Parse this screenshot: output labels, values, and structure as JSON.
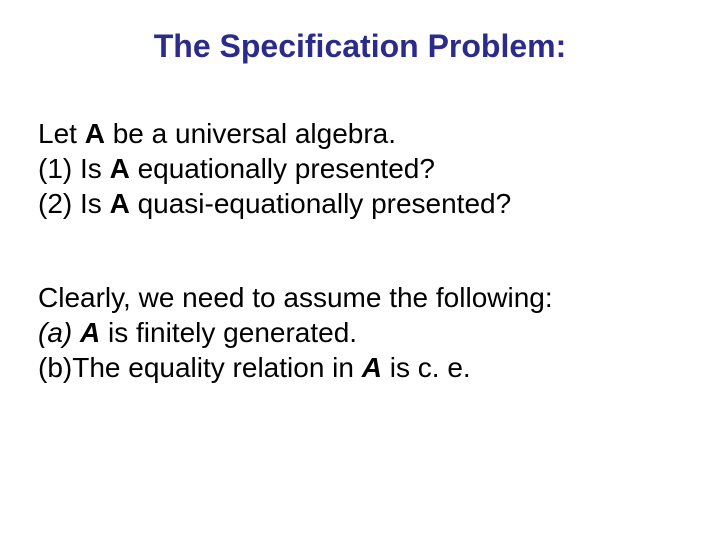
{
  "title": {
    "text": "The Specification Problem:",
    "color": "#2b2b8c",
    "fontsize": 32
  },
  "body": {
    "color": "#000000",
    "fontsize": 28
  },
  "block1": {
    "l1_a": "Let ",
    "l1_b": "A",
    "l1_c": " be a universal algebra.",
    "l2_a": "(1) Is ",
    "l2_b": "A",
    "l2_c": " equationally presented?",
    "l3_a": "(2) Is ",
    "l3_b": "A",
    "l3_c": " quasi-equationally presented?"
  },
  "block2": {
    "l1": "Clearly, we need to assume the following:",
    "l2_a": "(a)",
    "l2_sp": " ",
    "l2_b": "A",
    "l2_c": " is finitely generated.",
    "l3_a": "(b)",
    "l3_b": "The equality relation in ",
    "l3_c": "A",
    "l3_d": " is c. e."
  }
}
